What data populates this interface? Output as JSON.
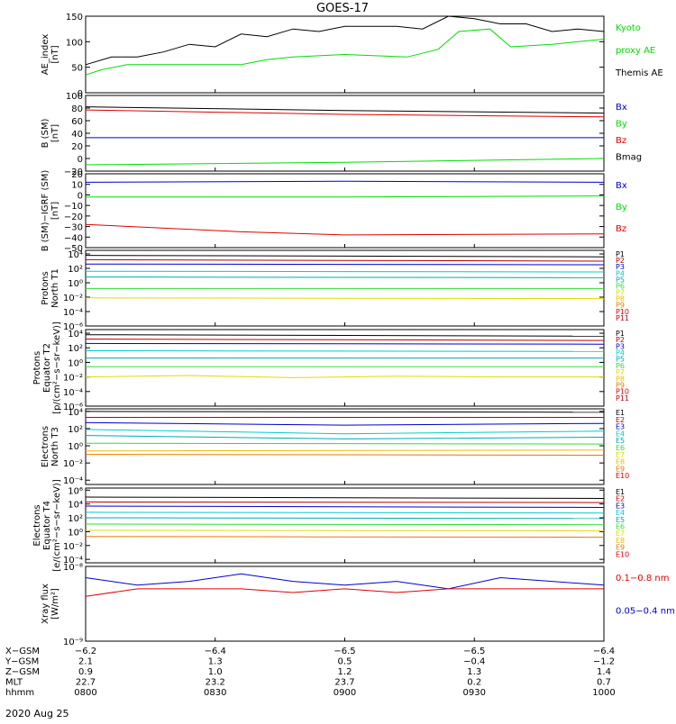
{
  "title": "GOES-17",
  "colors": {
    "black": "#000000",
    "red": "#e00000",
    "green": "#00dd00",
    "blue": "#0000cc",
    "cyan": "#00cccc",
    "teal": "#00aaaa",
    "lime": "#33dd33",
    "yellow": "#dddd00",
    "gold": "#eebb00",
    "orange": "#ee7700",
    "darkred": "#bb0000"
  },
  "chart_data": [
    {
      "type": "line",
      "ylabel": "AE_index\n[nT]",
      "ylim": [
        0,
        150
      ],
      "yticks": [
        {
          "v": 0,
          "l": "0"
        },
        {
          "v": 50,
          "l": "50"
        },
        {
          "v": 100,
          "l": "100"
        },
        {
          "v": 150,
          "l": "150"
        }
      ],
      "log": false,
      "legend": [
        {
          "text": "Kyoto",
          "color": "green"
        },
        {
          "text": "proxy AE",
          "color": "green"
        },
        {
          "text": "Themis AE",
          "color": "black"
        }
      ],
      "series": [
        {
          "name": "Themis AE",
          "color": "black",
          "x": [
            0,
            0.05,
            0.1,
            0.15,
            0.2,
            0.25,
            0.3,
            0.35,
            0.4,
            0.45,
            0.5,
            0.55,
            0.6,
            0.65,
            0.7,
            0.75,
            0.8,
            0.85,
            0.9,
            0.95,
            1
          ],
          "y": [
            55,
            70,
            70,
            80,
            95,
            90,
            115,
            110,
            125,
            120,
            130,
            130,
            130,
            125,
            150,
            145,
            135,
            135,
            120,
            125,
            120
          ]
        },
        {
          "name": "Kyoto proxy AE",
          "color": "green",
          "x": [
            0,
            0.03,
            0.08,
            0.12,
            0.3,
            0.35,
            0.4,
            0.5,
            0.62,
            0.68,
            0.72,
            0.78,
            0.82,
            0.9,
            0.95,
            1
          ],
          "y": [
            35,
            45,
            55,
            55,
            55,
            65,
            70,
            75,
            70,
            85,
            120,
            125,
            90,
            95,
            100,
            105
          ]
        }
      ]
    },
    {
      "type": "line",
      "ylabel": "B (SM)\n[nT]",
      "ylim": [
        -20,
        100
      ],
      "yticks": [
        {
          "v": -20,
          "l": "−20"
        },
        {
          "v": 0,
          "l": "0"
        },
        {
          "v": 20,
          "l": "20"
        },
        {
          "v": 40,
          "l": "40"
        },
        {
          "v": 60,
          "l": "60"
        },
        {
          "v": 80,
          "l": "80"
        },
        {
          "v": 100,
          "l": "100"
        }
      ],
      "log": false,
      "legend": [
        {
          "text": "Bx",
          "color": "blue"
        },
        {
          "text": "By",
          "color": "green"
        },
        {
          "text": "Bz",
          "color": "red"
        },
        {
          "text": "Bmag",
          "color": "black"
        }
      ],
      "series": [
        {
          "name": "Bmag",
          "color": "black",
          "x": [
            0,
            0.5,
            1
          ],
          "y": [
            82,
            76,
            72
          ]
        },
        {
          "name": "Bz",
          "color": "red",
          "x": [
            0,
            0.5,
            1
          ],
          "y": [
            77,
            70,
            66
          ]
        },
        {
          "name": "Bx",
          "color": "blue",
          "x": [
            0,
            0.5,
            1
          ],
          "y": [
            33,
            33,
            33
          ]
        },
        {
          "name": "By",
          "color": "green",
          "x": [
            0,
            0.5,
            1
          ],
          "y": [
            -10,
            -6,
            0
          ]
        }
      ]
    },
    {
      "type": "line",
      "ylabel": "B (SM)−IGRF (SM)\n[nT]",
      "ylim": [
        -50,
        20
      ],
      "yticks": [
        {
          "v": -50,
          "l": "−50"
        },
        {
          "v": -40,
          "l": "−40"
        },
        {
          "v": -30,
          "l": "−30"
        },
        {
          "v": -20,
          "l": "−20"
        },
        {
          "v": -10,
          "l": "−10"
        },
        {
          "v": 0,
          "l": "0"
        },
        {
          "v": 10,
          "l": "10"
        },
        {
          "v": 20,
          "l": "20"
        }
      ],
      "log": false,
      "legend": [
        {
          "text": "Bx",
          "color": "blue"
        },
        {
          "text": "By",
          "color": "green"
        },
        {
          "text": "Bz",
          "color": "red"
        }
      ],
      "series": [
        {
          "name": "Bx",
          "color": "blue",
          "x": [
            0,
            0.5,
            1
          ],
          "y": [
            12,
            13,
            12
          ]
        },
        {
          "name": "By",
          "color": "green",
          "x": [
            0,
            0.5,
            1
          ],
          "y": [
            -2,
            -2,
            -1
          ]
        },
        {
          "name": "Bz",
          "color": "red",
          "x": [
            0,
            0.3,
            0.5,
            1
          ],
          "y": [
            -28,
            -35,
            -38,
            -37
          ]
        }
      ]
    },
    {
      "type": "line",
      "ylabel": "Protons\nNorth T1",
      "ylim": [
        -6,
        4.5
      ],
      "yticks": [
        {
          "v": -6,
          "l": "10⁻⁶"
        },
        {
          "v": -4,
          "l": "10⁻⁴"
        },
        {
          "v": -2,
          "l": "10⁻²"
        },
        {
          "v": 0,
          "l": "10⁰"
        },
        {
          "v": 2,
          "l": "10²"
        },
        {
          "v": 4,
          "l": "10⁴"
        }
      ],
      "log": true,
      "legend": [
        {
          "text": "P1",
          "color": "black"
        },
        {
          "text": "P2",
          "color": "darkred"
        },
        {
          "text": "P3",
          "color": "blue"
        },
        {
          "text": "P4",
          "color": "cyan"
        },
        {
          "text": "P5",
          "color": "teal"
        },
        {
          "text": "P6",
          "color": "lime"
        },
        {
          "text": "P7",
          "color": "yellow"
        },
        {
          "text": "P8",
          "color": "gold"
        },
        {
          "text": "P9",
          "color": "orange"
        },
        {
          "text": "P10",
          "color": "red"
        },
        {
          "text": "P11",
          "color": "darkred"
        }
      ],
      "series": [
        {
          "name": "P1",
          "color": "black",
          "x": [
            0,
            1
          ],
          "y": [
            3.8,
            3.6
          ]
        },
        {
          "name": "P2",
          "color": "darkred",
          "x": [
            0,
            1
          ],
          "y": [
            3.2,
            3.0
          ]
        },
        {
          "name": "P3",
          "color": "blue",
          "x": [
            0,
            1
          ],
          "y": [
            2.6,
            2.5
          ]
        },
        {
          "name": "P4",
          "color": "cyan",
          "x": [
            0,
            1
          ],
          "y": [
            1.6,
            1.5
          ]
        },
        {
          "name": "P5",
          "color": "teal",
          "x": [
            0,
            1
          ],
          "y": [
            0.8,
            0.7
          ]
        },
        {
          "name": "P6",
          "color": "lime",
          "x": [
            0,
            1
          ],
          "y": [
            -0.8,
            -0.8
          ]
        },
        {
          "name": "P7",
          "color": "yellow",
          "x": [
            0,
            1
          ],
          "y": [
            -2.1,
            -2.2
          ]
        }
      ]
    },
    {
      "type": "line",
      "ylabel": "Protons\nEquator T2\n[p/(cm²−s−sr−keV)]",
      "ylim": [
        -6,
        4.5
      ],
      "yticks": [
        {
          "v": -6,
          "l": "10⁻⁶"
        },
        {
          "v": -4,
          "l": "10⁻⁴"
        },
        {
          "v": -2,
          "l": "10⁻²"
        },
        {
          "v": 0,
          "l": "10⁰"
        },
        {
          "v": 2,
          "l": "10²"
        },
        {
          "v": 4,
          "l": "10⁴"
        }
      ],
      "log": true,
      "legend": [
        {
          "text": "P1",
          "color": "black"
        },
        {
          "text": "P2",
          "color": "darkred"
        },
        {
          "text": "P3",
          "color": "blue"
        },
        {
          "text": "P4",
          "color": "cyan"
        },
        {
          "text": "P5",
          "color": "teal"
        },
        {
          "text": "P6",
          "color": "lime"
        },
        {
          "text": "P7",
          "color": "yellow"
        },
        {
          "text": "P8",
          "color": "gold"
        },
        {
          "text": "P9",
          "color": "orange"
        },
        {
          "text": "P10",
          "color": "red"
        },
        {
          "text": "P11",
          "color": "darkred"
        }
      ],
      "series": [
        {
          "name": "P1",
          "color": "black",
          "x": [
            0,
            1
          ],
          "y": [
            3.8,
            3.6
          ]
        },
        {
          "name": "P2",
          "color": "darkred",
          "x": [
            0,
            1
          ],
          "y": [
            3.2,
            3.0
          ]
        },
        {
          "name": "P3",
          "color": "blue",
          "x": [
            0,
            1
          ],
          "y": [
            2.6,
            2.5
          ]
        },
        {
          "name": "P4",
          "color": "cyan",
          "x": [
            0,
            1
          ],
          "y": [
            1.6,
            1.5
          ]
        },
        {
          "name": "P5",
          "color": "teal",
          "x": [
            0,
            1
          ],
          "y": [
            0.6,
            0.6
          ]
        },
        {
          "name": "P6",
          "color": "lime",
          "x": [
            0,
            1
          ],
          "y": [
            -0.6,
            -0.6
          ]
        },
        {
          "name": "P7",
          "color": "yellow",
          "x": [
            0,
            0.2,
            0.4,
            0.6,
            0.8,
            1
          ],
          "y": [
            -2.0,
            -1.8,
            -2.1,
            -1.9,
            -2.0,
            -2.0
          ]
        }
      ]
    },
    {
      "type": "line",
      "ylabel": "Electrons\nNorth T3",
      "ylim": [
        -4.5,
        4.3
      ],
      "yticks": [
        {
          "v": -4,
          "l": "10⁻⁴"
        },
        {
          "v": -2,
          "l": "10⁻²"
        },
        {
          "v": 0,
          "l": "10⁰"
        },
        {
          "v": 2,
          "l": "10²"
        },
        {
          "v": 4,
          "l": "10⁴"
        }
      ],
      "log": true,
      "legend": [
        {
          "text": "E1",
          "color": "black"
        },
        {
          "text": "E2",
          "color": "darkred"
        },
        {
          "text": "E3",
          "color": "blue"
        },
        {
          "text": "E4",
          "color": "cyan"
        },
        {
          "text": "E5",
          "color": "teal"
        },
        {
          "text": "E6",
          "color": "lime"
        },
        {
          "text": "E7",
          "color": "yellow"
        },
        {
          "text": "E8",
          "color": "gold"
        },
        {
          "text": "E9",
          "color": "orange"
        },
        {
          "text": "E10",
          "color": "red"
        }
      ],
      "series": [
        {
          "name": "E1",
          "color": "black",
          "x": [
            0,
            1
          ],
          "y": [
            4.0,
            3.9
          ]
        },
        {
          "name": "E2",
          "color": "darkred",
          "x": [
            0,
            1
          ],
          "y": [
            3.3,
            3.3
          ]
        },
        {
          "name": "E3",
          "color": "blue",
          "x": [
            0,
            0.5,
            1
          ],
          "y": [
            2.7,
            2.4,
            2.6
          ]
        },
        {
          "name": "E4",
          "color": "cyan",
          "x": [
            0,
            0.5,
            1
          ],
          "y": [
            1.9,
            1.4,
            1.7
          ]
        },
        {
          "name": "E5",
          "color": "teal",
          "x": [
            0,
            0.5,
            1
          ],
          "y": [
            1.2,
            0.8,
            1.0
          ]
        },
        {
          "name": "E6",
          "color": "lime",
          "x": [
            0,
            1
          ],
          "y": [
            0.3,
            0.2
          ]
        },
        {
          "name": "E7",
          "color": "gold",
          "x": [
            0,
            1
          ],
          "y": [
            -0.6,
            -0.5
          ]
        },
        {
          "name": "E8",
          "color": "orange",
          "x": [
            0,
            1
          ],
          "y": [
            -1.0,
            -1.1
          ]
        }
      ]
    },
    {
      "type": "line",
      "ylabel": "Electrons\nEquator T4\n[e/(cm²−s−sr−keV)]",
      "ylim": [
        -4.5,
        6.3
      ],
      "yticks": [
        {
          "v": -4,
          "l": "10⁻⁴"
        },
        {
          "v": -2,
          "l": "10⁻²"
        },
        {
          "v": 0,
          "l": "10⁰"
        },
        {
          "v": 2,
          "l": "10²"
        },
        {
          "v": 4,
          "l": "10⁴"
        },
        {
          "v": 6,
          "l": "10⁶"
        }
      ],
      "log": true,
      "legend": [
        {
          "text": "E1",
          "color": "black"
        },
        {
          "text": "E2",
          "color": "darkred"
        },
        {
          "text": "E3",
          "color": "blue"
        },
        {
          "text": "E4",
          "color": "cyan"
        },
        {
          "text": "E5",
          "color": "teal"
        },
        {
          "text": "E6",
          "color": "lime"
        },
        {
          "text": "E7",
          "color": "yellow"
        },
        {
          "text": "E8",
          "color": "gold"
        },
        {
          "text": "E9",
          "color": "orange"
        },
        {
          "text": "E10",
          "color": "red"
        }
      ],
      "series": [
        {
          "name": "E1",
          "color": "black",
          "x": [
            0,
            1
          ],
          "y": [
            5.0,
            4.8
          ]
        },
        {
          "name": "E2",
          "color": "darkred",
          "x": [
            0,
            1
          ],
          "y": [
            4.3,
            4.2
          ]
        },
        {
          "name": "E3",
          "color": "blue",
          "x": [
            0,
            1
          ],
          "y": [
            3.7,
            3.5
          ]
        },
        {
          "name": "E4",
          "color": "cyan",
          "x": [
            0,
            1
          ],
          "y": [
            2.8,
            2.7
          ]
        },
        {
          "name": "E5",
          "color": "teal",
          "x": [
            0,
            1
          ],
          "y": [
            2.0,
            1.9
          ]
        },
        {
          "name": "E6",
          "color": "lime",
          "x": [
            0,
            1
          ],
          "y": [
            1.1,
            1.0
          ]
        },
        {
          "name": "E7",
          "color": "yellow",
          "x": [
            0,
            1
          ],
          "y": [
            0.2,
            0.1
          ]
        },
        {
          "name": "E8",
          "color": "orange",
          "x": [
            0,
            1
          ],
          "y": [
            -0.7,
            -0.8
          ]
        }
      ]
    },
    {
      "type": "line",
      "ylabel": "Xray flux\n[W/m²]",
      "ylim": [
        -9,
        -8
      ],
      "yticks": [
        {
          "v": -9,
          "l": "10⁻⁹"
        },
        {
          "v": -8,
          "l": "10⁻⁸"
        }
      ],
      "log": true,
      "legend": [
        {
          "text": "0.1−0.8 nm",
          "color": "red"
        },
        {
          "text": "0.05−0.4 nm",
          "color": "blue"
        }
      ],
      "series": [
        {
          "name": "0.05−0.4 nm",
          "color": "blue",
          "x": [
            0,
            0.1,
            0.2,
            0.3,
            0.4,
            0.5,
            0.6,
            0.7,
            0.8,
            0.9,
            1
          ],
          "y": [
            -8.15,
            -8.25,
            -8.2,
            -8.1,
            -8.2,
            -8.25,
            -8.2,
            -8.3,
            -8.15,
            -8.2,
            -8.25
          ]
        },
        {
          "name": "0.1−0.8 nm",
          "color": "red",
          "x": [
            0,
            0.1,
            0.2,
            0.3,
            0.4,
            0.5,
            0.6,
            0.7,
            0.8,
            0.9,
            1
          ],
          "y": [
            -8.4,
            -8.3,
            -8.3,
            -8.3,
            -8.35,
            -8.3,
            -8.35,
            -8.3,
            -8.3,
            -8.3,
            -8.3
          ]
        }
      ]
    }
  ],
  "xaxis": {
    "rows": [
      "X−GSM",
      "Y−GSM",
      "Z−GSM",
      "MLT",
      "hhmm"
    ],
    "date": "2020 Aug 25",
    "ticks": [
      {
        "x": 0,
        "values": [
          "−6.2",
          "2.1",
          "0.9",
          "22.7",
          "0800"
        ]
      },
      {
        "x": 0.25,
        "values": [
          "−6.4",
          "1.3",
          "1.0",
          "23.2",
          "0830"
        ]
      },
      {
        "x": 0.5,
        "values": [
          "−6.5",
          "0.5",
          "1.2",
          "23.7",
          "0900"
        ]
      },
      {
        "x": 0.75,
        "values": [
          "−6.5",
          "−0.4",
          "1.3",
          "0.2",
          "0930"
        ]
      },
      {
        "x": 1,
        "values": [
          "−6.4",
          "−1.2",
          "1.4",
          "0.7",
          "1000"
        ]
      }
    ]
  }
}
